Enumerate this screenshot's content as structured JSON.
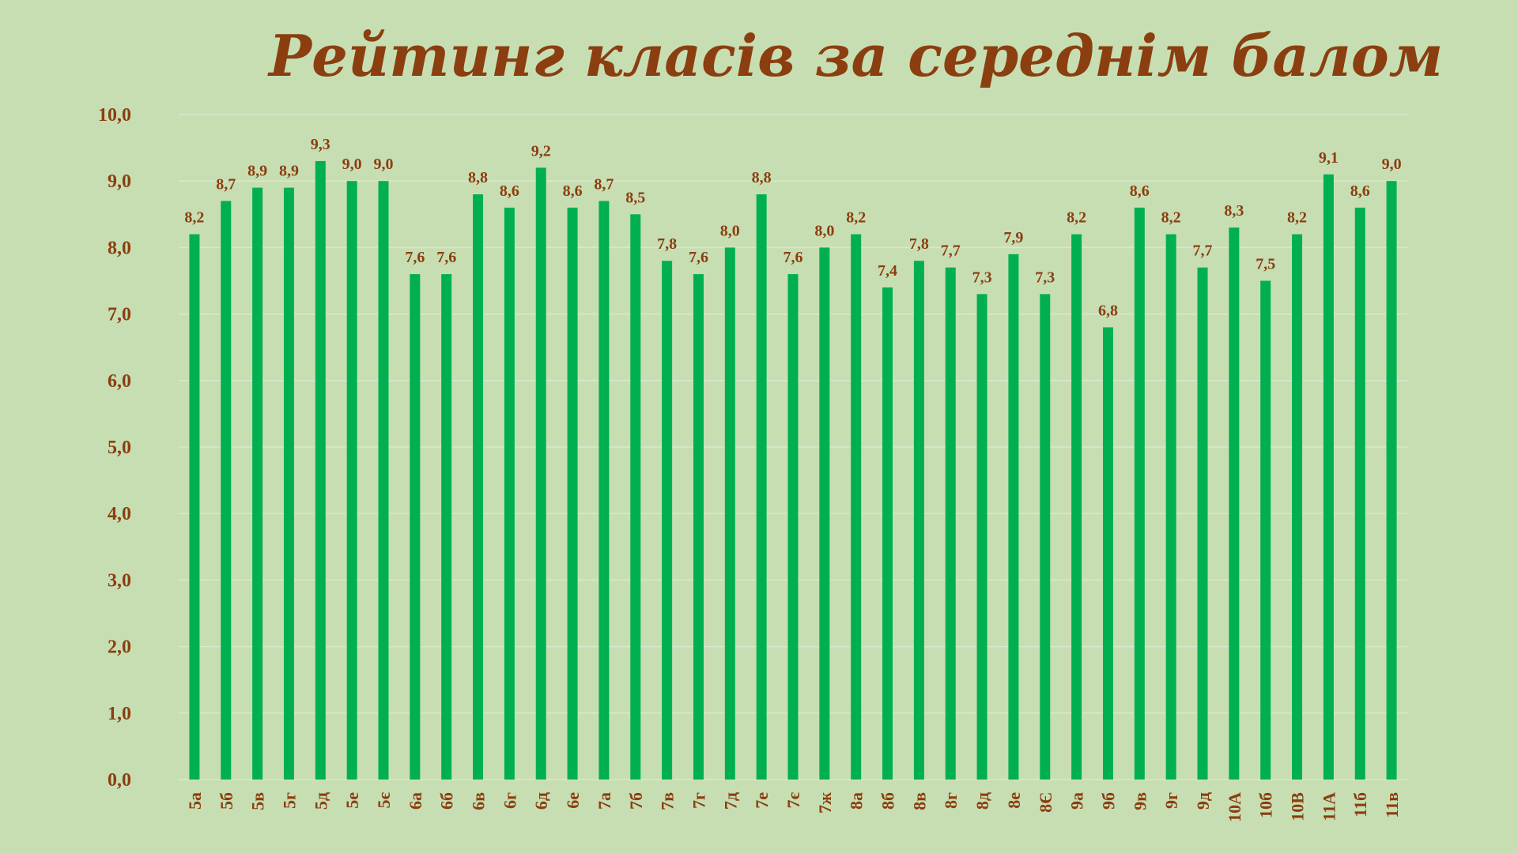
{
  "chart_data": {
    "type": "bar",
    "title": "Рейтинг класів за середнім балом",
    "categories": [
      "5а",
      "5б",
      "5в",
      "5г",
      "5д",
      "5е",
      "5є",
      "6а",
      "6б",
      "6в",
      "6г",
      "6д",
      "6е",
      "7а",
      "7б",
      "7в",
      "7г",
      "7д",
      "7е",
      "7є",
      "7ж",
      "8а",
      "8б",
      "8в",
      "8г",
      "8д",
      "8е",
      "8Є",
      "9а",
      "9б",
      "9в",
      "9г",
      "9д",
      "10А",
      "10б",
      "10В",
      "11А",
      "11б",
      "11в"
    ],
    "values": [
      8.2,
      8.7,
      8.9,
      8.9,
      9.3,
      9.0,
      9.0,
      7.6,
      7.6,
      8.8,
      8.6,
      9.2,
      8.6,
      8.7,
      8.5,
      7.8,
      7.6,
      8.0,
      8.8,
      7.6,
      8.0,
      8.2,
      7.4,
      7.8,
      7.7,
      7.3,
      7.9,
      7.3,
      8.2,
      6.8,
      8.6,
      8.2,
      7.7,
      8.3,
      7.5,
      8.2,
      9.1,
      8.6,
      9.0
    ],
    "data_labels": [
      "8,2",
      "8,7",
      "8,9",
      "8,9",
      "9,3",
      "9,0",
      "9,0",
      "7,6",
      "7,6",
      "8,8",
      "8,6",
      "9,2",
      "8,6",
      "8,7",
      "8,5",
      "7,8",
      "7,6",
      "8,0",
      "8,8",
      "7,6",
      "8,0",
      "8,2",
      "7,4",
      "7,8",
      "7,7",
      "7,3",
      "7,9",
      "7,3",
      "8,2",
      "6,8",
      "8,6",
      "8,2",
      "7,7",
      "8,3",
      "7,5",
      "8,2",
      "9,1",
      "8,6",
      "9,0"
    ],
    "y_ticks": [
      "0,0",
      "1,0",
      "2,0",
      "3,0",
      "4,0",
      "5,0",
      "6,0",
      "7,0",
      "8,0",
      "9,0",
      "10,0"
    ],
    "xlabel": "",
    "ylabel": "",
    "ylim": [
      0,
      10
    ],
    "grid": true,
    "legend": "none",
    "colors": {
      "bar": "#00b050",
      "text": "#8b3e0f",
      "background": "#c7deb3",
      "grid": "#d9e7cc"
    }
  }
}
